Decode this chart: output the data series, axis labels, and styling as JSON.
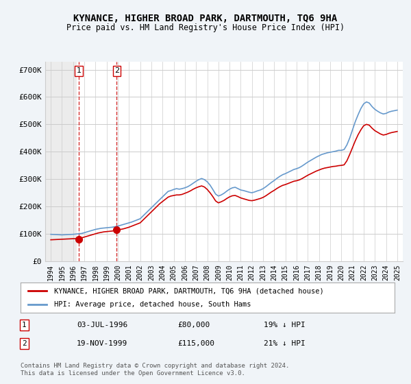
{
  "title": "KYNANCE, HIGHER BROAD PARK, DARTMOUTH, TQ6 9HA",
  "subtitle": "Price paid vs. HM Land Registry's House Price Index (HPI)",
  "ylabel_ticks": [
    "£0",
    "£100K",
    "£200K",
    "£300K",
    "£400K",
    "£500K",
    "£600K",
    "£700K"
  ],
  "ytick_values": [
    0,
    100000,
    200000,
    300000,
    400000,
    500000,
    600000,
    700000
  ],
  "ylim": [
    0,
    730000
  ],
  "xlim_start": 1993.5,
  "xlim_end": 2025.5,
  "hpi_color": "#6699cc",
  "price_color": "#cc0000",
  "marker_color": "#cc0000",
  "transaction1_date": "03-JUL-1996",
  "transaction1_year": 1996.5,
  "transaction1_price": 80000,
  "transaction1_label": "1",
  "transaction1_pct": "19% ↓ HPI",
  "transaction2_date": "19-NOV-1999",
  "transaction2_year": 1999.9,
  "transaction2_price": 115000,
  "transaction2_label": "2",
  "transaction2_pct": "21% ↓ HPI",
  "legend_line1": "KYNANCE, HIGHER BROAD PARK, DARTMOUTH, TQ6 9HA (detached house)",
  "legend_line2": "HPI: Average price, detached house, South Hams",
  "footer1": "Contains HM Land Registry data © Crown copyright and database right 2024.",
  "footer2": "This data is licensed under the Open Government Licence v3.0.",
  "bg_color": "#f0f4f8",
  "plot_bg": "#ffffff",
  "hatch_color": "#cccccc",
  "grid_color": "#cccccc",
  "hpi_data_x": [
    1994.0,
    1994.25,
    1994.5,
    1994.75,
    1995.0,
    1995.25,
    1995.5,
    1995.75,
    1996.0,
    1996.25,
    1996.5,
    1996.75,
    1997.0,
    1997.25,
    1997.5,
    1997.75,
    1998.0,
    1998.25,
    1998.5,
    1998.75,
    1999.0,
    1999.25,
    1999.5,
    1999.75,
    2000.0,
    2000.25,
    2000.5,
    2000.75,
    2001.0,
    2001.25,
    2001.5,
    2001.75,
    2002.0,
    2002.25,
    2002.5,
    2002.75,
    2003.0,
    2003.25,
    2003.5,
    2003.75,
    2004.0,
    2004.25,
    2004.5,
    2004.75,
    2005.0,
    2005.25,
    2005.5,
    2005.75,
    2006.0,
    2006.25,
    2006.5,
    2006.75,
    2007.0,
    2007.25,
    2007.5,
    2007.75,
    2008.0,
    2008.25,
    2008.5,
    2008.75,
    2009.0,
    2009.25,
    2009.5,
    2009.75,
    2010.0,
    2010.25,
    2010.5,
    2010.75,
    2011.0,
    2011.25,
    2011.5,
    2011.75,
    2012.0,
    2012.25,
    2012.5,
    2012.75,
    2013.0,
    2013.25,
    2013.5,
    2013.75,
    2014.0,
    2014.25,
    2014.5,
    2014.75,
    2015.0,
    2015.25,
    2015.5,
    2015.75,
    2016.0,
    2016.25,
    2016.5,
    2016.75,
    2017.0,
    2017.25,
    2017.5,
    2017.75,
    2018.0,
    2018.25,
    2018.5,
    2018.75,
    2019.0,
    2019.25,
    2019.5,
    2019.75,
    2020.0,
    2020.25,
    2020.5,
    2020.75,
    2021.0,
    2021.25,
    2021.5,
    2021.75,
    2022.0,
    2022.25,
    2022.5,
    2022.75,
    2023.0,
    2023.25,
    2023.5,
    2023.75,
    2024.0,
    2024.25,
    2024.5,
    2024.75,
    2025.0
  ],
  "hpi_data_y": [
    98000,
    97500,
    97000,
    96500,
    96000,
    96500,
    97000,
    97500,
    98000,
    99000,
    100000,
    101000,
    104000,
    107000,
    110000,
    113000,
    116000,
    118000,
    120000,
    121000,
    122000,
    123000,
    124000,
    126000,
    128000,
    131000,
    134000,
    137000,
    140000,
    143000,
    147000,
    151000,
    155000,
    165000,
    175000,
    185000,
    195000,
    205000,
    215000,
    225000,
    235000,
    245000,
    255000,
    258000,
    262000,
    265000,
    263000,
    265000,
    268000,
    272000,
    278000,
    285000,
    292000,
    298000,
    302000,
    298000,
    290000,
    278000,
    262000,
    245000,
    238000,
    242000,
    248000,
    256000,
    263000,
    268000,
    270000,
    265000,
    260000,
    258000,
    255000,
    252000,
    250000,
    253000,
    257000,
    260000,
    265000,
    272000,
    280000,
    288000,
    295000,
    303000,
    310000,
    316000,
    320000,
    325000,
    330000,
    335000,
    338000,
    342000,
    348000,
    355000,
    362000,
    368000,
    374000,
    380000,
    385000,
    390000,
    393000,
    396000,
    398000,
    400000,
    402000,
    405000,
    405000,
    408000,
    425000,
    450000,
    480000,
    510000,
    535000,
    558000,
    575000,
    582000,
    578000,
    565000,
    555000,
    548000,
    542000,
    538000,
    540000,
    545000,
    548000,
    550000,
    552000
  ],
  "price_data_x": [
    1994.0,
    1994.25,
    1994.5,
    1994.75,
    1995.0,
    1995.25,
    1995.5,
    1995.75,
    1996.0,
    1996.25,
    1996.5,
    1996.75,
    1997.0,
    1997.25,
    1997.5,
    1997.75,
    1998.0,
    1998.25,
    1998.5,
    1998.75,
    1999.0,
    1999.25,
    1999.5,
    1999.75,
    2000.0,
    2000.25,
    2000.5,
    2000.75,
    2001.0,
    2001.25,
    2001.5,
    2001.75,
    2002.0,
    2002.25,
    2002.5,
    2002.75,
    2003.0,
    2003.25,
    2003.5,
    2003.75,
    2004.0,
    2004.25,
    2004.5,
    2004.75,
    2005.0,
    2005.25,
    2005.5,
    2005.75,
    2006.0,
    2006.25,
    2006.5,
    2006.75,
    2007.0,
    2007.25,
    2007.5,
    2007.75,
    2008.0,
    2008.25,
    2008.5,
    2008.75,
    2009.0,
    2009.25,
    2009.5,
    2009.75,
    2010.0,
    2010.25,
    2010.5,
    2010.75,
    2011.0,
    2011.25,
    2011.5,
    2011.75,
    2012.0,
    2012.25,
    2012.5,
    2012.75,
    2013.0,
    2013.25,
    2013.5,
    2013.75,
    2014.0,
    2014.25,
    2014.5,
    2014.75,
    2015.0,
    2015.25,
    2015.5,
    2015.75,
    2016.0,
    2016.25,
    2016.5,
    2016.75,
    2017.0,
    2017.25,
    2017.5,
    2017.75,
    2018.0,
    2018.25,
    2018.5,
    2018.75,
    2019.0,
    2019.25,
    2019.5,
    2019.75,
    2020.0,
    2020.25,
    2020.5,
    2020.75,
    2021.0,
    2021.25,
    2021.5,
    2021.75,
    2022.0,
    2022.25,
    2022.5,
    2022.75,
    2023.0,
    2023.25,
    2023.5,
    2023.75,
    2024.0,
    2024.25,
    2024.5,
    2024.75,
    2025.0
  ],
  "price_data_y": [
    78000,
    78500,
    79000,
    79500,
    80000,
    80500,
    81000,
    81500,
    82000,
    82000,
    82500,
    85000,
    88000,
    91000,
    94000,
    97000,
    100000,
    103000,
    105000,
    107000,
    108000,
    109000,
    110000,
    112000,
    114000,
    116000,
    118000,
    121000,
    124000,
    128000,
    132000,
    136000,
    140000,
    150000,
    160000,
    170000,
    180000,
    190000,
    200000,
    210000,
    218000,
    226000,
    234000,
    238000,
    240000,
    242000,
    242000,
    244000,
    248000,
    252000,
    257000,
    263000,
    268000,
    272000,
    275000,
    271000,
    262000,
    250000,
    236000,
    220000,
    213000,
    217000,
    222000,
    229000,
    235000,
    239000,
    240000,
    236000,
    231000,
    228000,
    225000,
    222000,
    221000,
    223000,
    226000,
    229000,
    233000,
    239000,
    246000,
    253000,
    259000,
    266000,
    272000,
    277000,
    280000,
    284000,
    288000,
    292000,
    294000,
    297000,
    302000,
    308000,
    314000,
    319000,
    324000,
    329000,
    333000,
    337000,
    340000,
    342000,
    344000,
    346000,
    347000,
    349000,
    350000,
    352000,
    367000,
    390000,
    415000,
    440000,
    462000,
    480000,
    495000,
    500000,
    497000,
    486000,
    477000,
    471000,
    465000,
    461000,
    463000,
    467000,
    470000,
    472000,
    474000
  ],
  "xtick_years": [
    1994,
    1995,
    1996,
    1997,
    1998,
    1999,
    2000,
    2001,
    2002,
    2003,
    2004,
    2005,
    2006,
    2007,
    2008,
    2009,
    2010,
    2011,
    2012,
    2013,
    2014,
    2015,
    2016,
    2017,
    2018,
    2019,
    2020,
    2021,
    2022,
    2023,
    2024,
    2025
  ]
}
